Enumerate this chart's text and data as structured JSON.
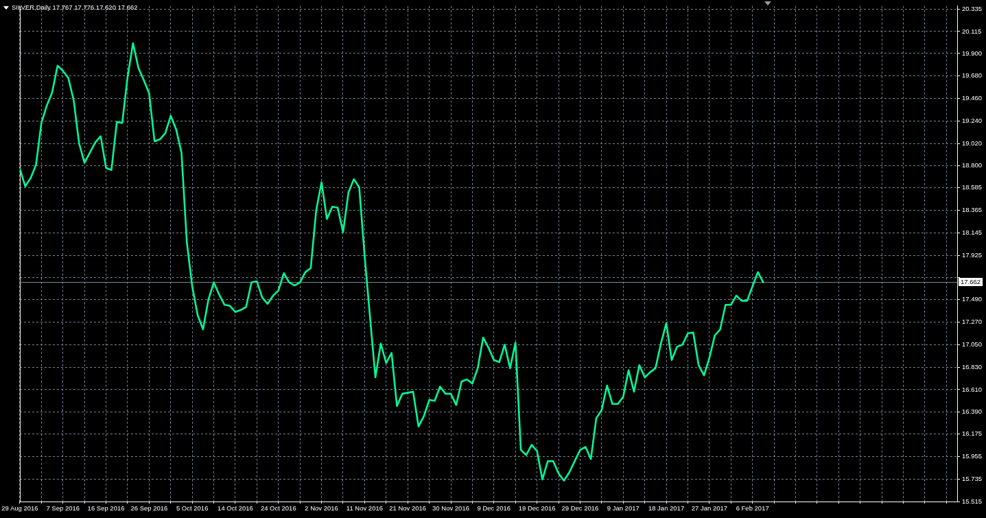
{
  "chart_data": {
    "type": "line",
    "title": "SILVER,Daily 17.767 17.776 17.620 17.662",
    "categories": [
      "29 Aug 2016",
      null,
      null,
      null,
      null,
      null,
      null,
      null,
      "7 Sep 2016",
      null,
      null,
      null,
      null,
      null,
      null,
      null,
      "16 Sep 2016",
      null,
      null,
      null,
      null,
      null,
      null,
      null,
      "26 Sep 2016",
      null,
      null,
      null,
      null,
      null,
      null,
      null,
      "5 Oct 2016",
      null,
      null,
      null,
      null,
      null,
      null,
      null,
      "14 Oct 2016",
      null,
      null,
      null,
      null,
      null,
      null,
      null,
      "24 Oct 2016",
      null,
      null,
      null,
      null,
      null,
      null,
      null,
      "2 Nov 2016",
      null,
      null,
      null,
      null,
      null,
      null,
      null,
      "11 Nov 2016",
      null,
      null,
      null,
      null,
      null,
      null,
      null,
      "21 Nov 2016",
      null,
      null,
      null,
      null,
      null,
      null,
      null,
      "30 Nov 2016",
      null,
      null,
      null,
      null,
      null,
      null,
      null,
      "9 Dec 2016",
      null,
      null,
      null,
      null,
      null,
      null,
      null,
      "19 Dec 2016",
      null,
      null,
      null,
      null,
      null,
      null,
      null,
      "29 Dec 2016",
      null,
      null,
      null,
      null,
      null,
      null,
      null,
      "9 Jan 2017",
      null,
      null,
      null,
      null,
      null,
      null,
      null,
      "18 Jan 2017",
      null,
      null,
      null,
      null,
      null,
      null,
      null,
      "27 Jan 2017",
      null,
      null,
      null,
      null,
      null,
      null,
      null,
      "6 Feb 2017",
      null,
      null
    ],
    "color": "#00fa9a",
    "values": [
      18.77,
      18.6,
      18.68,
      18.81,
      19.22,
      19.39,
      19.52,
      19.78,
      19.73,
      19.66,
      19.44,
      19.02,
      18.83,
      18.93,
      19.03,
      19.09,
      18.78,
      18.76,
      19.23,
      19.22,
      19.67,
      20.0,
      19.76,
      19.64,
      19.51,
      19.04,
      19.06,
      19.12,
      19.29,
      19.16,
      18.93,
      18.05,
      17.62,
      17.34,
      17.2,
      17.49,
      17.66,
      17.54,
      17.44,
      17.43,
      17.37,
      17.39,
      17.42,
      17.66,
      17.67,
      17.51,
      17.45,
      17.53,
      17.58,
      17.75,
      17.66,
      17.63,
      17.66,
      17.76,
      17.8,
      18.36,
      18.64,
      18.28,
      18.4,
      18.39,
      18.15,
      18.54,
      18.67,
      18.59,
      17.92,
      17.32,
      16.73,
      17.06,
      16.87,
      16.97,
      16.45,
      16.57,
      16.58,
      16.59,
      16.25,
      16.35,
      16.51,
      16.5,
      16.64,
      16.57,
      16.57,
      16.46,
      16.69,
      16.71,
      16.67,
      16.82,
      17.12,
      17.02,
      16.9,
      16.88,
      17.05,
      16.82,
      17.07,
      16.02,
      15.97,
      16.07,
      16.01,
      15.73,
      15.91,
      15.91,
      15.79,
      15.72,
      15.8,
      15.91,
      16.02,
      16.05,
      15.93,
      16.33,
      16.41,
      16.65,
      16.47,
      16.47,
      16.54,
      16.8,
      16.59,
      16.85,
      16.73,
      16.78,
      16.82,
      17.06,
      17.26,
      16.9,
      17.03,
      17.05,
      17.16,
      17.17,
      16.85,
      16.75,
      16.92,
      17.14,
      17.2,
      17.44,
      17.44,
      17.53,
      17.48,
      17.48,
      17.62,
      17.76,
      17.66
    ],
    "ylim": [
      15.515,
      20.365
    ],
    "yticks": [
      20.335,
      20.115,
      {
        "value": 19.9,
        "label": "19.900"
      },
      {
        "value": 19.68,
        "label": "19.680"
      },
      {
        "value": 19.46,
        "label": "19.460"
      },
      {
        "value": 19.24,
        "label": "19.240"
      },
      {
        "value": 19.02,
        "label": "19.020"
      },
      {
        "value": 18.8,
        "label": "18.800"
      },
      18.585,
      18.365,
      18.145,
      17.925,
      {
        "value": 17.705,
        "label": null
      },
      {
        "value": 17.49,
        "label": "17.490"
      },
      {
        "value": 17.27,
        "label": "17.270"
      },
      {
        "value": 17.05,
        "label": "17.050"
      },
      {
        "value": 16.83,
        "label": "16.830"
      },
      {
        "value": 16.61,
        "label": "16.610"
      },
      {
        "value": 16.39,
        "label": "16.390"
      },
      16.175,
      15.955,
      15.735,
      15.515
    ],
    "grid": true,
    "ref_lines": [
      {
        "axis": "y",
        "value": 17.662,
        "label": "17.662",
        "color": "#778899"
      }
    ]
  }
}
